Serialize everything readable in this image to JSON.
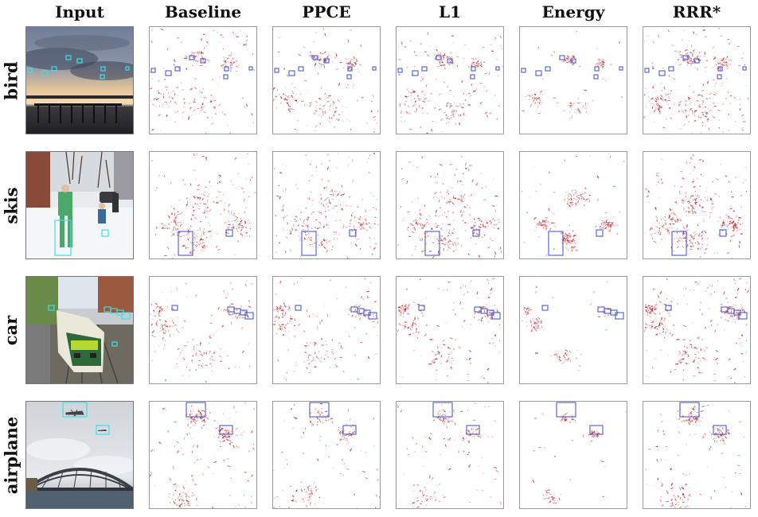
{
  "columns": [
    "Input",
    "Baseline",
    "PPCE",
    "L1",
    "Energy",
    "RRR*"
  ],
  "rows": [
    {
      "label": "bird",
      "scene": "sunset-pier",
      "intensity": [
        0.55,
        0.55,
        0.6,
        0.4,
        0.8
      ]
    },
    {
      "label": "skis",
      "scene": "snow-street",
      "intensity": [
        0.7,
        0.7,
        0.75,
        0.8,
        0.85
      ]
    },
    {
      "label": "car",
      "scene": "train-station",
      "intensity": [
        0.5,
        0.5,
        0.55,
        0.35,
        0.75
      ]
    },
    {
      "label": "airplane",
      "scene": "sky-bridge",
      "intensity": [
        0.6,
        0.45,
        0.4,
        0.3,
        0.5
      ]
    }
  ],
  "colors": {
    "heat": "#c0141c",
    "box_heatmap": "#4a5bd6",
    "box_input": "#3ee0e8"
  }
}
